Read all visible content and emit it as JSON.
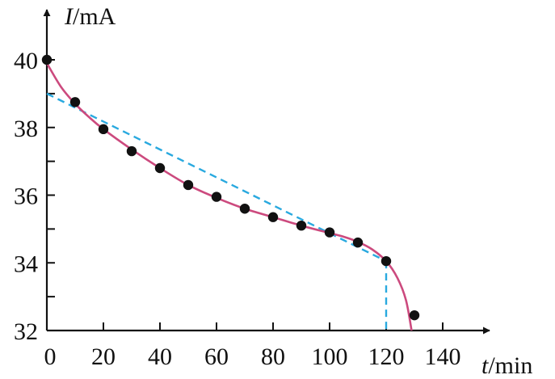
{
  "chart_data": {
    "type": "scatter",
    "title": "",
    "xlabel_var": "t",
    "xlabel_unit": "/min",
    "ylabel_var": "I",
    "ylabel_unit": "/mA",
    "xlim": [
      0,
      140
    ],
    "ylim": [
      32,
      40
    ],
    "x_ticks": [
      20,
      40,
      60,
      80,
      100,
      120,
      140
    ],
    "y_ticks": [
      32,
      34,
      36,
      38,
      40
    ],
    "y_minor_ticks": [
      33,
      35,
      37,
      39
    ],
    "origin_label": "0",
    "grid": false,
    "points": [
      {
        "x": 0,
        "y": 40.0
      },
      {
        "x": 10,
        "y": 38.75
      },
      {
        "x": 20,
        "y": 37.95
      },
      {
        "x": 30,
        "y": 37.3
      },
      {
        "x": 40,
        "y": 36.8
      },
      {
        "x": 50,
        "y": 36.3
      },
      {
        "x": 60,
        "y": 35.95
      },
      {
        "x": 70,
        "y": 35.6
      },
      {
        "x": 80,
        "y": 35.35
      },
      {
        "x": 90,
        "y": 35.1
      },
      {
        "x": 100,
        "y": 34.9
      },
      {
        "x": 110,
        "y": 34.6
      },
      {
        "x": 120,
        "y": 34.05
      },
      {
        "x": 130,
        "y": 32.45
      }
    ],
    "fit_curve": [
      {
        "x": 0,
        "y": 39.9
      },
      {
        "x": 5,
        "y": 39.2
      },
      {
        "x": 10,
        "y": 38.7
      },
      {
        "x": 15,
        "y": 38.3
      },
      {
        "x": 20,
        "y": 37.95
      },
      {
        "x": 30,
        "y": 37.35
      },
      {
        "x": 40,
        "y": 36.8
      },
      {
        "x": 50,
        "y": 36.3
      },
      {
        "x": 60,
        "y": 35.92
      },
      {
        "x": 70,
        "y": 35.6
      },
      {
        "x": 80,
        "y": 35.35
      },
      {
        "x": 90,
        "y": 35.1
      },
      {
        "x": 100,
        "y": 34.88
      },
      {
        "x": 105,
        "y": 34.77
      },
      {
        "x": 110,
        "y": 34.62
      },
      {
        "x": 115,
        "y": 34.4
      },
      {
        "x": 120,
        "y": 34.05
      },
      {
        "x": 124,
        "y": 33.55
      },
      {
        "x": 127,
        "y": 32.9
      },
      {
        "x": 129,
        "y": 32.0
      }
    ],
    "tangent_line": {
      "from": {
        "x": 0,
        "y": 39.0
      },
      "to": {
        "x": 120,
        "y": 34.05
      }
    },
    "guide_line": {
      "from": {
        "x": 120,
        "y": 34.05
      },
      "to": {
        "x": 120,
        "y": 32
      }
    },
    "colors": {
      "curve": "#cc4a7e",
      "dashed": "#29a9df",
      "points": "#111111",
      "axes": "#111111"
    }
  }
}
